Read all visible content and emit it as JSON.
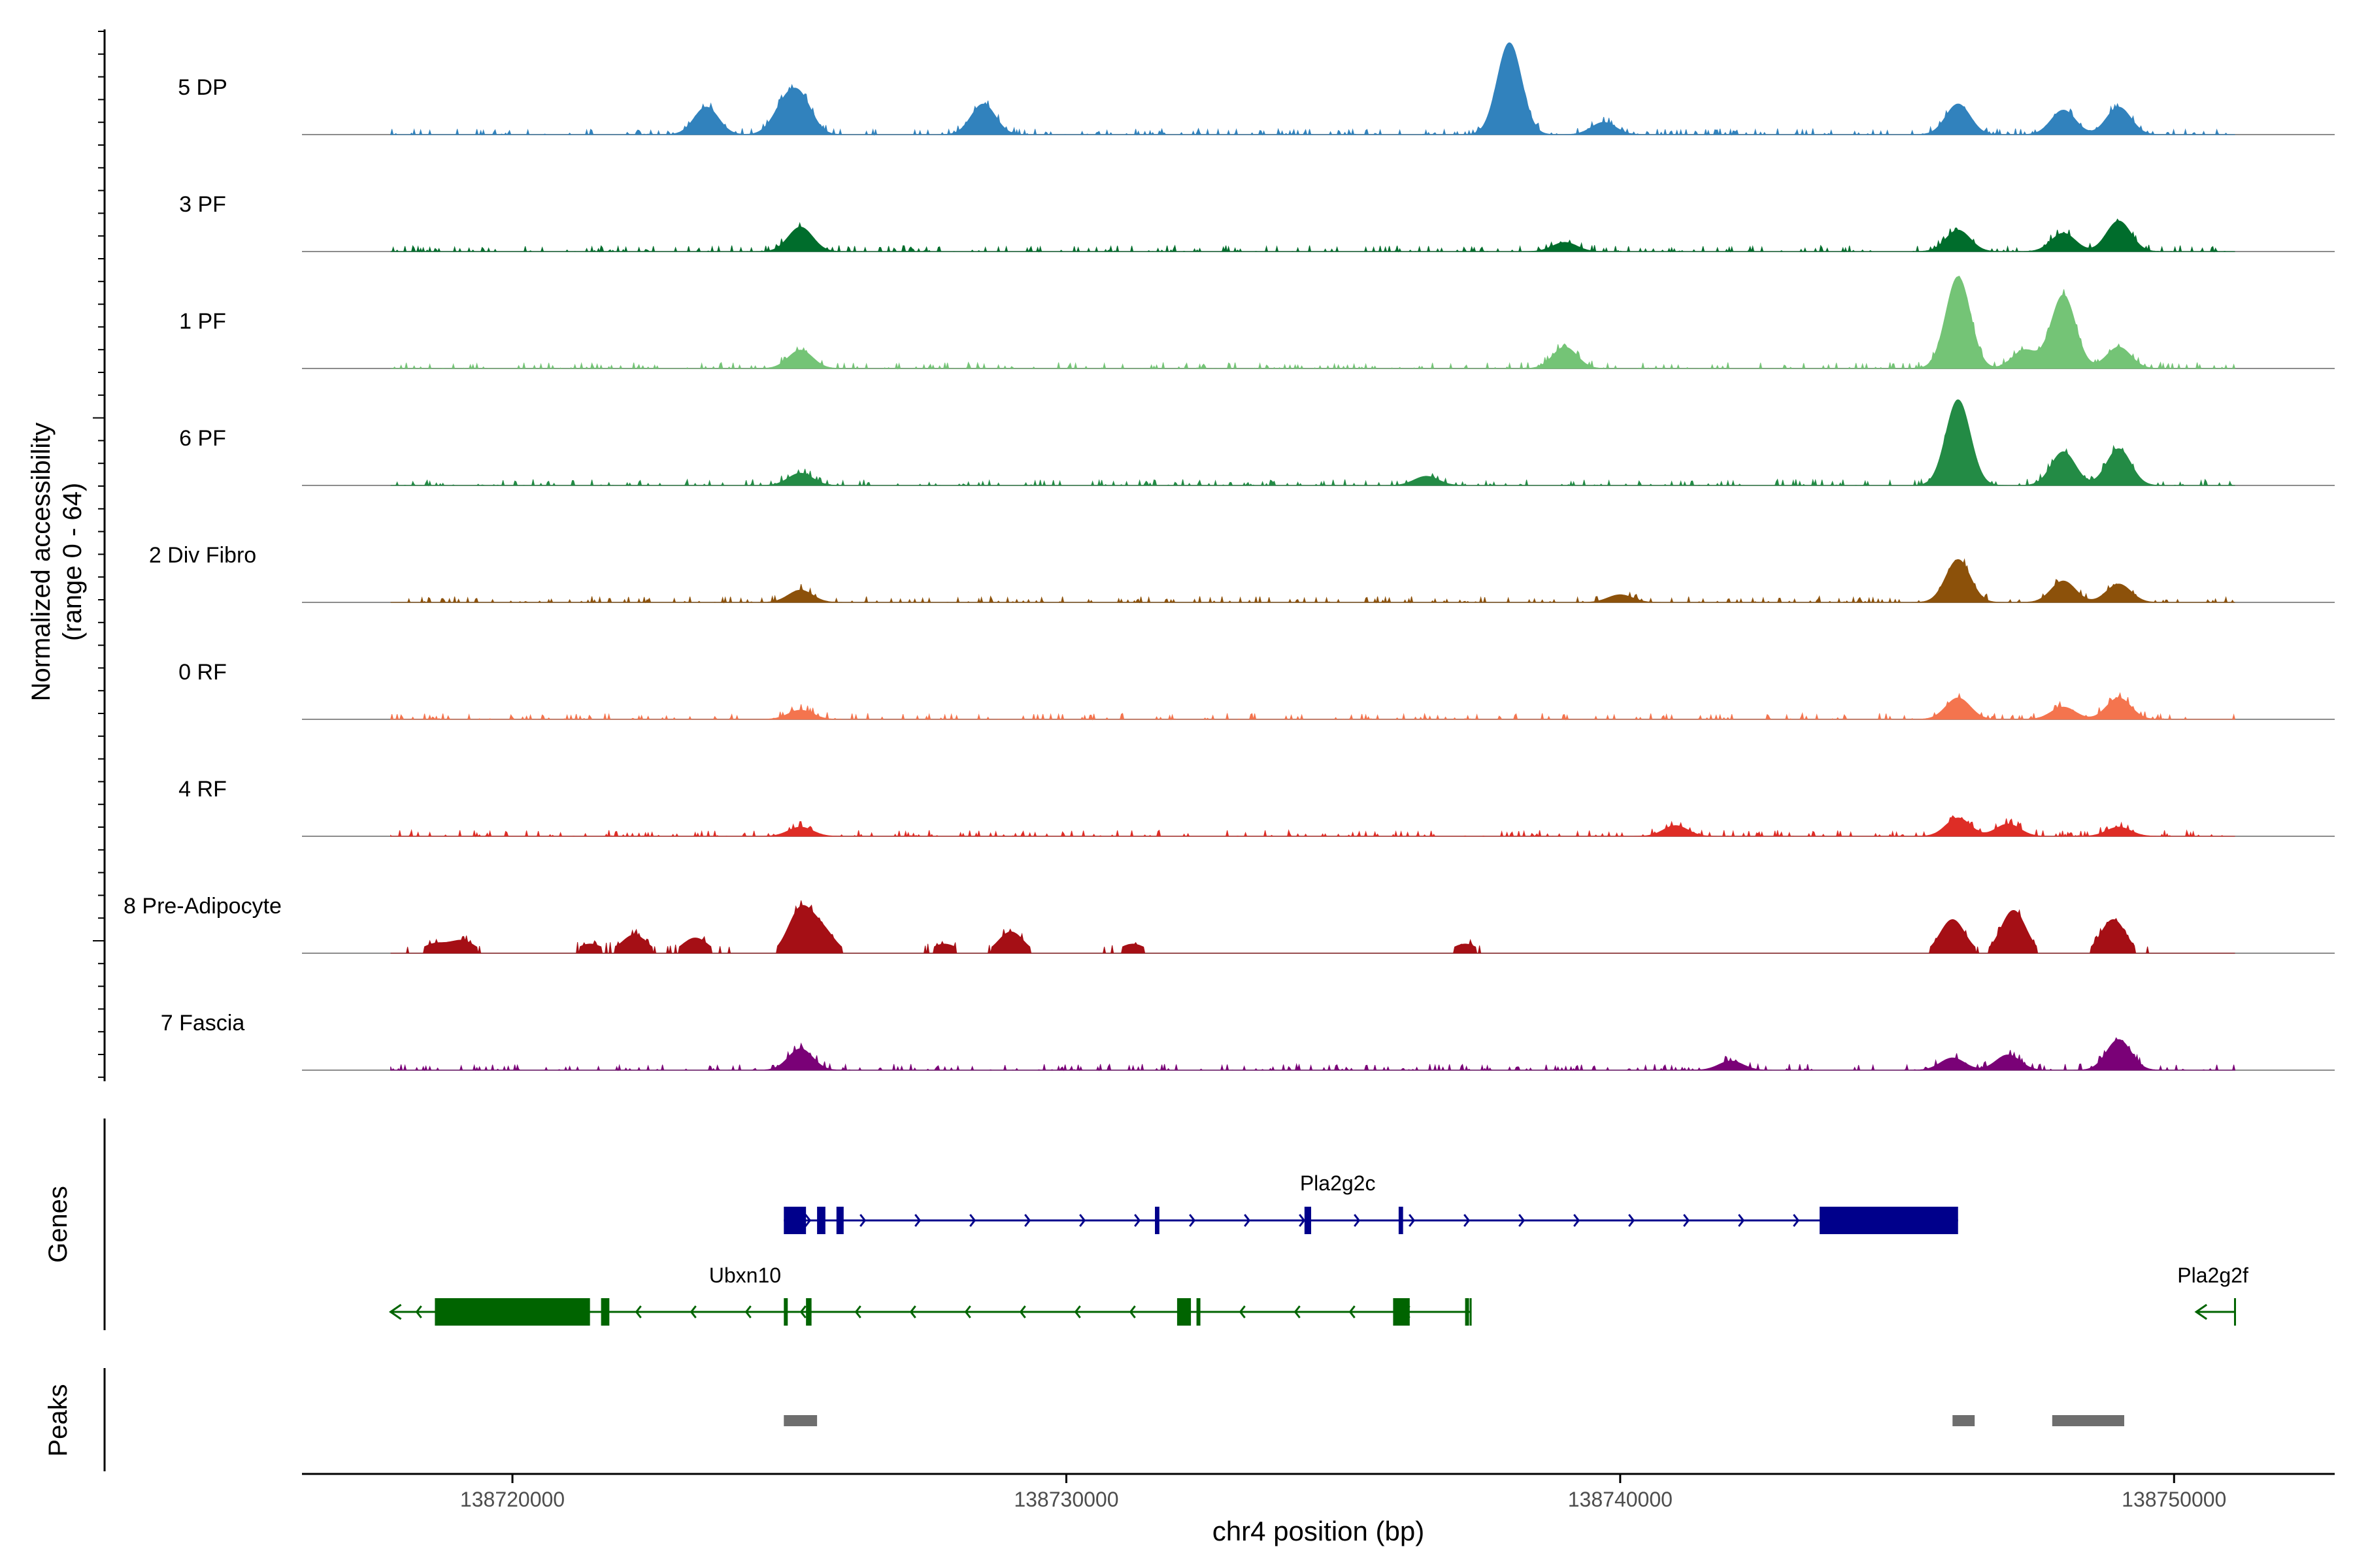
{
  "chart_data": {
    "type": "area",
    "title": "",
    "ylabel_line1": "Normalized accessibility",
    "ylabel_line2": "(range 0 - 64)",
    "ylim": [
      0,
      64
    ],
    "xlabel": "chr4 position (bp)",
    "xlim": [
      138716200,
      138752900
    ],
    "x_ticks": [
      138720000,
      138730000,
      138740000,
      138750000
    ],
    "x_tick_labels": [
      "138720000",
      "138730000",
      "138740000",
      "138750000"
    ],
    "region_start": 138717800,
    "region_end": 138751100,
    "tracks": [
      {
        "name": "5 DP",
        "color": "#3182bd",
        "peaks": [
          [
            138723500,
            18
          ],
          [
            138724900,
            16
          ],
          [
            138725200,
            22
          ],
          [
            138728500,
            20
          ],
          [
            138738000,
            60
          ],
          [
            138739700,
            8
          ],
          [
            138746100,
            20
          ],
          [
            138748000,
            16
          ],
          [
            138749000,
            18
          ]
        ]
      },
      {
        "name": "3 PF",
        "color": "#006d2c",
        "peaks": [
          [
            138725200,
            16
          ],
          [
            138739000,
            6
          ],
          [
            138746100,
            14
          ],
          [
            138748000,
            12
          ],
          [
            138749000,
            20
          ]
        ]
      },
      {
        "name": "1 PF",
        "color": "#74c476",
        "peaks": [
          [
            138725200,
            12
          ],
          [
            138739000,
            14
          ],
          [
            138746100,
            60
          ],
          [
            138748000,
            48
          ],
          [
            138747300,
            12
          ],
          [
            138749000,
            14
          ]
        ]
      },
      {
        "name": "6 PF",
        "color": "#238b45",
        "peaks": [
          [
            138725200,
            8
          ],
          [
            138736500,
            6
          ],
          [
            138746100,
            56
          ],
          [
            138748000,
            22
          ],
          [
            138749000,
            24
          ]
        ]
      },
      {
        "name": "2 Div Fibro",
        "color": "#8c510a",
        "peaks": [
          [
            138725200,
            8
          ],
          [
            138740000,
            5
          ],
          [
            138746100,
            28
          ],
          [
            138748000,
            14
          ],
          [
            138749000,
            12
          ]
        ]
      },
      {
        "name": "0 RF",
        "color": "#f4744e",
        "peaks": [
          [
            138725200,
            6
          ],
          [
            138746100,
            14
          ],
          [
            138748000,
            8
          ],
          [
            138749000,
            14
          ]
        ]
      },
      {
        "name": "4 RF",
        "color": "#de2d26",
        "peaks": [
          [
            138725200,
            6
          ],
          [
            138741000,
            7
          ],
          [
            138746100,
            12
          ],
          [
            138747000,
            8
          ],
          [
            138749000,
            6
          ]
        ]
      },
      {
        "name": "8 Pre-Adipocyte",
        "color": "#a50f15",
        "peaks": [
          [
            138718600,
            6
          ],
          [
            138719100,
            8
          ],
          [
            138721400,
            6
          ],
          [
            138722200,
            12
          ],
          [
            138723300,
            10
          ],
          [
            138725200,
            28
          ],
          [
            138725600,
            14
          ],
          [
            138727800,
            6
          ],
          [
            138729000,
            14
          ],
          [
            138731200,
            6
          ],
          [
            138737200,
            6
          ],
          [
            138746000,
            22
          ],
          [
            138747100,
            28
          ],
          [
            138748900,
            22
          ]
        ]
      },
      {
        "name": "7 Fascia",
        "color": "#7a0177",
        "peaks": [
          [
            138725200,
            14
          ],
          [
            138742000,
            6
          ],
          [
            138746000,
            8
          ],
          [
            138747000,
            10
          ],
          [
            138749000,
            20
          ]
        ]
      }
    ],
    "genes_label": "Genes",
    "genes": [
      {
        "name": "Pla2g2c",
        "strand": "+",
        "color": "#00008b",
        "start": 138724900,
        "end": 138746100,
        "exons": [
          [
            138724900,
            138725300
          ],
          [
            138725500,
            138725650
          ],
          [
            138725850,
            138725980
          ],
          [
            138731600,
            138731680
          ],
          [
            138734300,
            138734420
          ],
          [
            138736000,
            138736080
          ],
          [
            138743600,
            138746100
          ]
        ]
      },
      {
        "name": "Ubxn10",
        "strand": "-",
        "color": "#006400",
        "start": 138717800,
        "end": 138737300,
        "exons": [
          [
            138718600,
            138721400
          ],
          [
            138721600,
            138721750
          ],
          [
            138724900,
            138724950
          ],
          [
            138725300,
            138725400
          ],
          [
            138732000,
            138732250
          ],
          [
            138732350,
            138732420
          ],
          [
            138735900,
            138736200
          ],
          [
            138737200,
            138737260
          ]
        ]
      },
      {
        "name": "Pla2g2f",
        "strand": "-",
        "color": "#006400",
        "start": 138750400,
        "end": 138751100,
        "exons": []
      }
    ],
    "peaks_label": "Peaks",
    "peak_regions": [
      [
        138724900,
        138725500
      ],
      [
        138746000,
        138746400
      ],
      [
        138747800,
        138749100
      ]
    ]
  }
}
